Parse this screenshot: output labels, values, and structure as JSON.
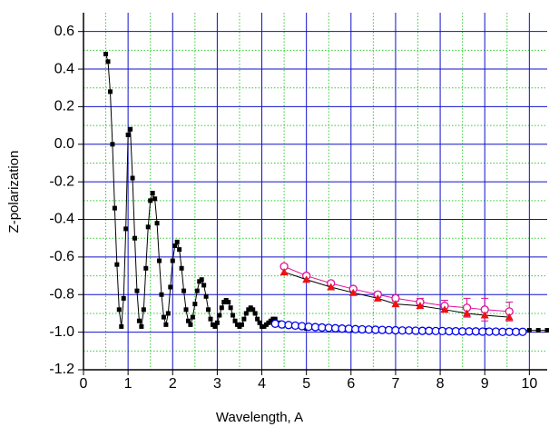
{
  "chart_data": {
    "type": "scatter-line",
    "xlabel": "Wavelength, A",
    "ylabel": "Z-polarization",
    "xlim": [
      0,
      10.4
    ],
    "ylim": [
      -1.2,
      0.7
    ],
    "xticks": [
      0,
      1,
      2,
      3,
      4,
      5,
      6,
      7,
      8,
      9,
      10
    ],
    "yticks": [
      -1.2,
      {
        "value": -1.0,
        "label": "-1.0"
      },
      -0.8,
      -0.6,
      -0.4,
      -0.2,
      {
        "value": 0,
        "label": "0.0"
      },
      0.2,
      0.4,
      0.6
    ],
    "grid": true,
    "grid_color": "#1010c8",
    "minor_grid_color": "#33cc33",
    "series": [
      {
        "color": "#000000",
        "marker": "square",
        "line_color": "#000000",
        "x": [
          0.5,
          0.55,
          0.6,
          0.65,
          0.7,
          0.75,
          0.8,
          0.85,
          0.9,
          0.95,
          1.0,
          1.05,
          1.1,
          1.15,
          1.2,
          1.25,
          1.3,
          1.35,
          1.4,
          1.45,
          1.5,
          1.55,
          1.6,
          1.65,
          1.7,
          1.75,
          1.8,
          1.85,
          1.9,
          1.95,
          2.0,
          2.05,
          2.1,
          2.15,
          2.2,
          2.25,
          2.3,
          2.35,
          2.4,
          2.45,
          2.5,
          2.55,
          2.6,
          2.65,
          2.7,
          2.75,
          2.8,
          2.85,
          2.9,
          2.95,
          3.0,
          3.05,
          3.1,
          3.15,
          3.2,
          3.25,
          3.3,
          3.35,
          3.4,
          3.45,
          3.5,
          3.55,
          3.6,
          3.65,
          3.7,
          3.75,
          3.8,
          3.85,
          3.9,
          3.95,
          4.0,
          4.05,
          4.1,
          4.15,
          4.2,
          4.25,
          4.3,
          4.4,
          4.6,
          5.0,
          6.0,
          7.0,
          8.0,
          9.0,
          10.0,
          10.2,
          10.4
        ],
        "values": [
          0.48,
          0.44,
          0.28,
          0.0,
          -0.34,
          -0.64,
          -0.88,
          -0.97,
          -0.82,
          -0.45,
          0.05,
          0.08,
          -0.18,
          -0.5,
          -0.78,
          -0.94,
          -0.97,
          -0.88,
          -0.66,
          -0.44,
          -0.3,
          -0.26,
          -0.29,
          -0.42,
          -0.62,
          -0.8,
          -0.92,
          -0.96,
          -0.9,
          -0.76,
          -0.62,
          -0.54,
          -0.52,
          -0.56,
          -0.66,
          -0.78,
          -0.88,
          -0.94,
          -0.96,
          -0.92,
          -0.85,
          -0.78,
          -0.73,
          -0.72,
          -0.75,
          -0.81,
          -0.88,
          -0.93,
          -0.96,
          -0.97,
          -0.95,
          -0.91,
          -0.87,
          -0.84,
          -0.83,
          -0.84,
          -0.87,
          -0.91,
          -0.94,
          -0.96,
          -0.97,
          -0.96,
          -0.93,
          -0.9,
          -0.88,
          -0.87,
          -0.88,
          -0.9,
          -0.93,
          -0.95,
          -0.97,
          -0.97,
          -0.96,
          -0.95,
          -0.94,
          -0.93,
          -0.93,
          -0.95,
          -0.97,
          -0.98,
          -0.99,
          -0.99,
          -0.99,
          -0.99,
          -0.99,
          -0.99,
          -0.99
        ]
      },
      {
        "color": "#0000ee",
        "marker": "open-circle",
        "line_color": "#0000ee",
        "x": [
          4.3,
          4.45,
          4.6,
          4.75,
          4.9,
          5.05,
          5.2,
          5.35,
          5.5,
          5.65,
          5.8,
          5.95,
          6.1,
          6.25,
          6.4,
          6.55,
          6.7,
          6.85,
          7.0,
          7.15,
          7.3,
          7.45,
          7.6,
          7.75,
          7.9,
          8.05,
          8.2,
          8.35,
          8.5,
          8.65,
          8.8,
          8.95,
          9.1,
          9.25,
          9.4,
          9.55,
          9.7,
          9.85
        ],
        "values": [
          -0.955,
          -0.959,
          -0.962,
          -0.965,
          -0.968,
          -0.971,
          -0.973,
          -0.975,
          -0.977,
          -0.979,
          -0.981,
          -0.982,
          -0.984,
          -0.985,
          -0.986,
          -0.987,
          -0.988,
          -0.989,
          -0.99,
          -0.991,
          -0.991,
          -0.992,
          -0.993,
          -0.993,
          -0.994,
          -0.994,
          -0.995,
          -0.995,
          -0.996,
          -0.996,
          -0.996,
          -0.997,
          -0.997,
          -0.997,
          -0.998,
          -0.998,
          -0.998,
          -0.998
        ]
      },
      {
        "color": "#e0109a",
        "marker": "open-circle",
        "line_color": "#e0109a",
        "x": [
          4.5,
          5.0,
          5.55,
          6.05,
          6.6,
          7.0,
          7.55,
          8.1,
          8.6,
          9.0,
          9.55
        ],
        "values": [
          -0.65,
          -0.7,
          -0.74,
          -0.77,
          -0.8,
          -0.82,
          -0.84,
          -0.86,
          -0.87,
          -0.88,
          -0.89
        ],
        "errors": [
          0.01,
          0.01,
          0.01,
          0.01,
          0.015,
          0.015,
          0.02,
          0.03,
          0.05,
          0.06,
          0.05
        ]
      },
      {
        "color": "#ee1111",
        "marker": "triangle",
        "line_color": "#000000",
        "x": [
          4.5,
          5.0,
          5.55,
          6.05,
          6.6,
          7.0,
          7.55,
          8.1,
          8.6,
          9.0,
          9.55
        ],
        "values": [
          -0.68,
          -0.72,
          -0.76,
          -0.79,
          -0.82,
          -0.85,
          -0.86,
          -0.88,
          -0.9,
          -0.91,
          -0.92
        ]
      }
    ]
  }
}
